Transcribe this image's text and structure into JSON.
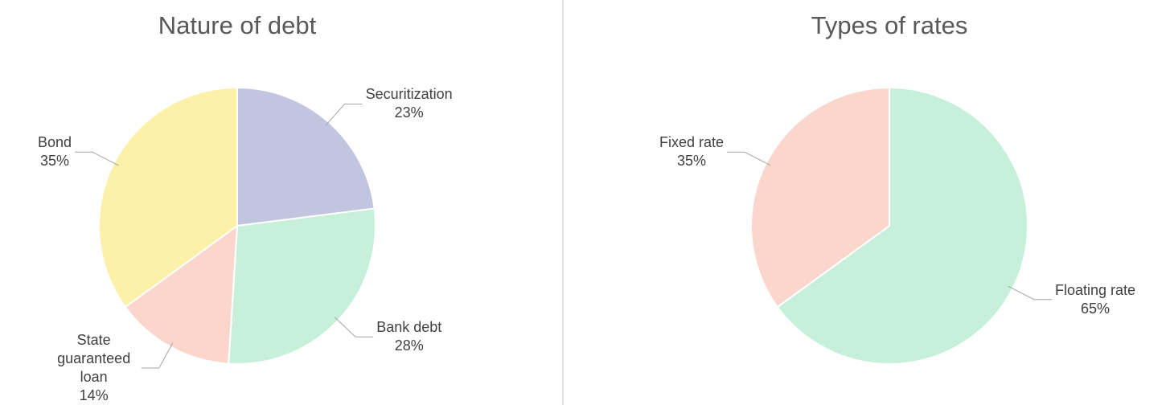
{
  "chart_data": [
    {
      "type": "pie",
      "title": "Nature of debt",
      "categories": [
        "Securitization",
        "Bank debt",
        "State guaranteed loan",
        "Bond"
      ],
      "values": [
        23,
        28,
        14,
        35
      ],
      "value_labels": [
        "23%",
        "28%",
        "14%",
        "35%"
      ],
      "colors": [
        "#c2c5e0",
        "#c6f0da",
        "#fbd6cd",
        "#fdf0a8"
      ]
    },
    {
      "type": "pie",
      "title": "Types of rates",
      "categories": [
        "Floating rate",
        "Fixed rate"
      ],
      "values": [
        65,
        35
      ],
      "value_labels": [
        "65%",
        "35%"
      ],
      "colors": [
        "#c6f0da",
        "#fbd6cd"
      ]
    }
  ]
}
